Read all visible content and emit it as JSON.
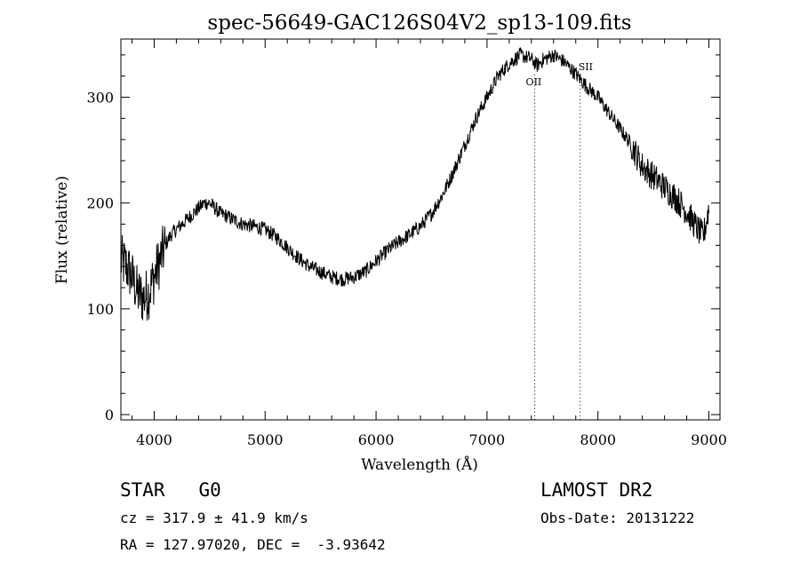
{
  "chart_data": {
    "type": "line",
    "title": "spec-56649-GAC126S04V2_sp13-109.fits",
    "xlabel": "Wavelength (Å)",
    "ylabel": "Flux (relative)",
    "xlim": [
      3700,
      9100
    ],
    "ylim": [
      -5,
      355
    ],
    "xticks": [
      4000,
      5000,
      6000,
      7000,
      8000,
      9000
    ],
    "xtick_labels": [
      "4000",
      "5000",
      "6000",
      "7000",
      "8000",
      "9000"
    ],
    "yticks": [
      0,
      100,
      200,
      300
    ],
    "ytick_labels": [
      "0",
      "100",
      "200",
      "300"
    ],
    "grid": false,
    "legend": "none",
    "series": [
      {
        "x": [
          3700,
          3750,
          3800,
          3850,
          3900,
          3950,
          4000,
          4050,
          4100,
          4150,
          4200,
          4250,
          4300,
          4350,
          4400,
          4450,
          4500,
          4550,
          4600,
          4650,
          4700,
          4800,
          4900,
          5000,
          5100,
          5200,
          5300,
          5400,
          5500,
          5600,
          5700,
          5800,
          5900,
          6000,
          6100,
          6200,
          6300,
          6400,
          6500,
          6600,
          6700,
          6800,
          6900,
          7000,
          7100,
          7200,
          7300,
          7400,
          7450,
          7500,
          7600,
          7700,
          7800,
          7900,
          8000,
          8100,
          8200,
          8300,
          8400,
          8500,
          8600,
          8700,
          8800,
          8900,
          8950,
          9000
        ],
        "y": [
          145,
          140,
          130,
          115,
          110,
          115,
          130,
          145,
          160,
          170,
          175,
          180,
          185,
          190,
          195,
          200,
          200,
          195,
          190,
          188,
          185,
          180,
          178,
          175,
          168,
          158,
          148,
          140,
          135,
          130,
          128,
          130,
          135,
          145,
          155,
          163,
          170,
          178,
          190,
          208,
          230,
          255,
          280,
          300,
          320,
          332,
          340,
          336,
          330,
          335,
          340,
          333,
          322,
          310,
          300,
          285,
          270,
          255,
          235,
          225,
          215,
          205,
          192,
          175,
          168,
          195
        ]
      }
    ],
    "annotations": [
      {
        "text": "OII",
        "x": 7430
      },
      {
        "text": "SII",
        "x": 7840
      }
    ]
  },
  "info": {
    "object_class": "STAR   G0",
    "redshift": "cz = 317.9 ± 41.9 km/s",
    "coordinates": "RA = 127.97020, DEC =  -3.93642",
    "survey": "LAMOST DR2",
    "obs_date": "Obs-Date: 20131222"
  }
}
